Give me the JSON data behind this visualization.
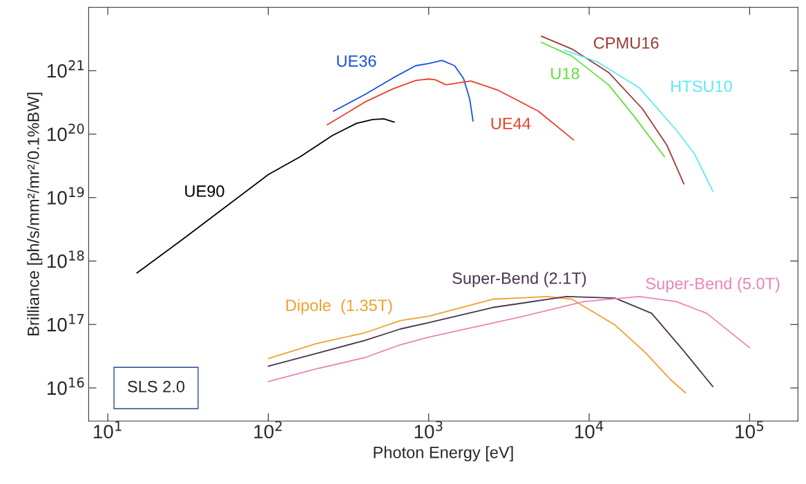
{
  "chart_data": {
    "type": "line",
    "xlabel": "Photon Energy [eV]",
    "ylabel": "Brilliance [ph/s/mm²/mr²/0.1%BW]",
    "log": "xy",
    "grid": false,
    "legend": false,
    "marker": "none",
    "line_style": "solid",
    "xlim": [
      7.6,
      200000
    ],
    "ylim": [
      3000000000000000.0,
      1e+22
    ],
    "xticks": [
      {
        "value": 10,
        "label": "10$^{1}$"
      },
      {
        "value": 100,
        "label": "10$^{2}$"
      },
      {
        "value": 1000,
        "label": "10$^{3}$"
      },
      {
        "value": 10000,
        "label": "10$^{4}$"
      },
      {
        "value": 100000,
        "label": "10$^{5}$"
      }
    ],
    "yticks": [
      {
        "value": 1e+16,
        "label": "10$^{16}$"
      },
      {
        "value": 1e+17,
        "label": "10$^{17}$"
      },
      {
        "value": 1e+18,
        "label": "10$^{18}$"
      },
      {
        "value": 1e+19,
        "label": "10$^{19}$"
      },
      {
        "value": 1e+20,
        "label": "10$^{20}$"
      },
      {
        "value": 1e+21,
        "label": "10$^{21}$"
      }
    ],
    "annotations": [
      "SLS 2.0"
    ],
    "series": [
      {
        "name": "UE90",
        "color": "#000000",
        "x": [
          15.2,
          30,
          100,
          158,
          251,
          355,
          447,
          525,
          610
        ],
        "values": [
          6.5e+17,
          2.3e+18,
          2.3e+19,
          4.4e+19,
          9.5e+19,
          1.48e+20,
          1.7e+20,
          1.74e+20,
          1.55e+20
        ]
      },
      {
        "name": "UE36",
        "color": "#1a4fe0",
        "x": [
          255,
          400,
          600,
          830,
          1000,
          1210,
          1450,
          1650,
          1800,
          1890
        ],
        "values": [
          2.3e+20,
          4.2e+20,
          7.7e+20,
          1.2e+21,
          1.3e+21,
          1.45e+21,
          1.2e+21,
          7.5e+20,
          3.6e+20,
          1.6e+20
        ]
      },
      {
        "name": "UE44",
        "color": "#e8402a",
        "x": [
          233,
          400,
          600,
          830,
          1000,
          1100,
          1280,
          1830,
          2720,
          4820,
          8000
        ],
        "values": [
          1.4e+20,
          3.2e+20,
          5.2e+20,
          7e+20,
          7.4e+20,
          7.2e+20,
          6e+20,
          6.9e+20,
          4.9e+20,
          2.3e+20,
          8.1e+19
        ]
      },
      {
        "name": "CPMU16",
        "color": "#9a3b35",
        "x": [
          5040,
          7800,
          13200,
          21500,
          30500,
          38900
        ],
        "values": [
          3.5e+21,
          2.2e+21,
          9.4e+20,
          2.5e+20,
          6.7e+19,
          1.65e+19
        ]
      },
      {
        "name": "U18",
        "color": "#5ee03a",
        "x": [
          5040,
          7800,
          13200,
          18800,
          29500
        ],
        "values": [
          2.8e+21,
          1.7e+21,
          6e+20,
          2e+20,
          4.4e+19
        ]
      },
      {
        "name": "HTSU10",
        "color": "#5ee8f5",
        "x": [
          7000,
          11100,
          20500,
          34800,
          45300,
          59000
        ],
        "values": [
          2.1e+21,
          1.4e+21,
          5.4e+20,
          1.17e+20,
          4.9e+19,
          1.26e+19
        ]
      },
      {
        "name": "Dipole  (1.35T)",
        "color": "#f0a030",
        "x": [
          100,
          200,
          400,
          667,
          1000,
          2500,
          5500,
          7800,
          14500,
          22400,
          31900,
          39800
        ],
        "values": [
          2.9e+16,
          5e+16,
          7.4e+16,
          1.15e+17,
          1.35e+17,
          2.5e+17,
          2.75e+17,
          2.5e+17,
          9.8e+16,
          3.6e+16,
          1.37e+16,
          8400000000000000.0
        ]
      },
      {
        "name": "Super-Bend (2.1T)",
        "color": "#4a3450",
        "x": [
          100,
          200,
          400,
          667,
          1000,
          2500,
          7200,
          14500,
          24500,
          38000,
          59000
        ],
        "values": [
          2.2e+16,
          3.5e+16,
          5.6e+16,
          8.5e+16,
          1.07e+17,
          1.85e+17,
          2.75e+17,
          2.6e+17,
          1.5e+17,
          4.1e+16,
          1.05e+16
        ]
      },
      {
        "name": "Super-Bend (5.0T)",
        "color": "#e884b8",
        "x": [
          100,
          200,
          400,
          667,
          1000,
          3900,
          9300,
          20500,
          34800,
          54000,
          100000
        ],
        "values": [
          1.26e+16,
          2e+16,
          3e+16,
          4.8e+16,
          6.3e+16,
          1.35e+17,
          2.3e+17,
          2.75e+17,
          2.3e+17,
          1.5e+17,
          4.3e+16
        ]
      }
    ]
  }
}
